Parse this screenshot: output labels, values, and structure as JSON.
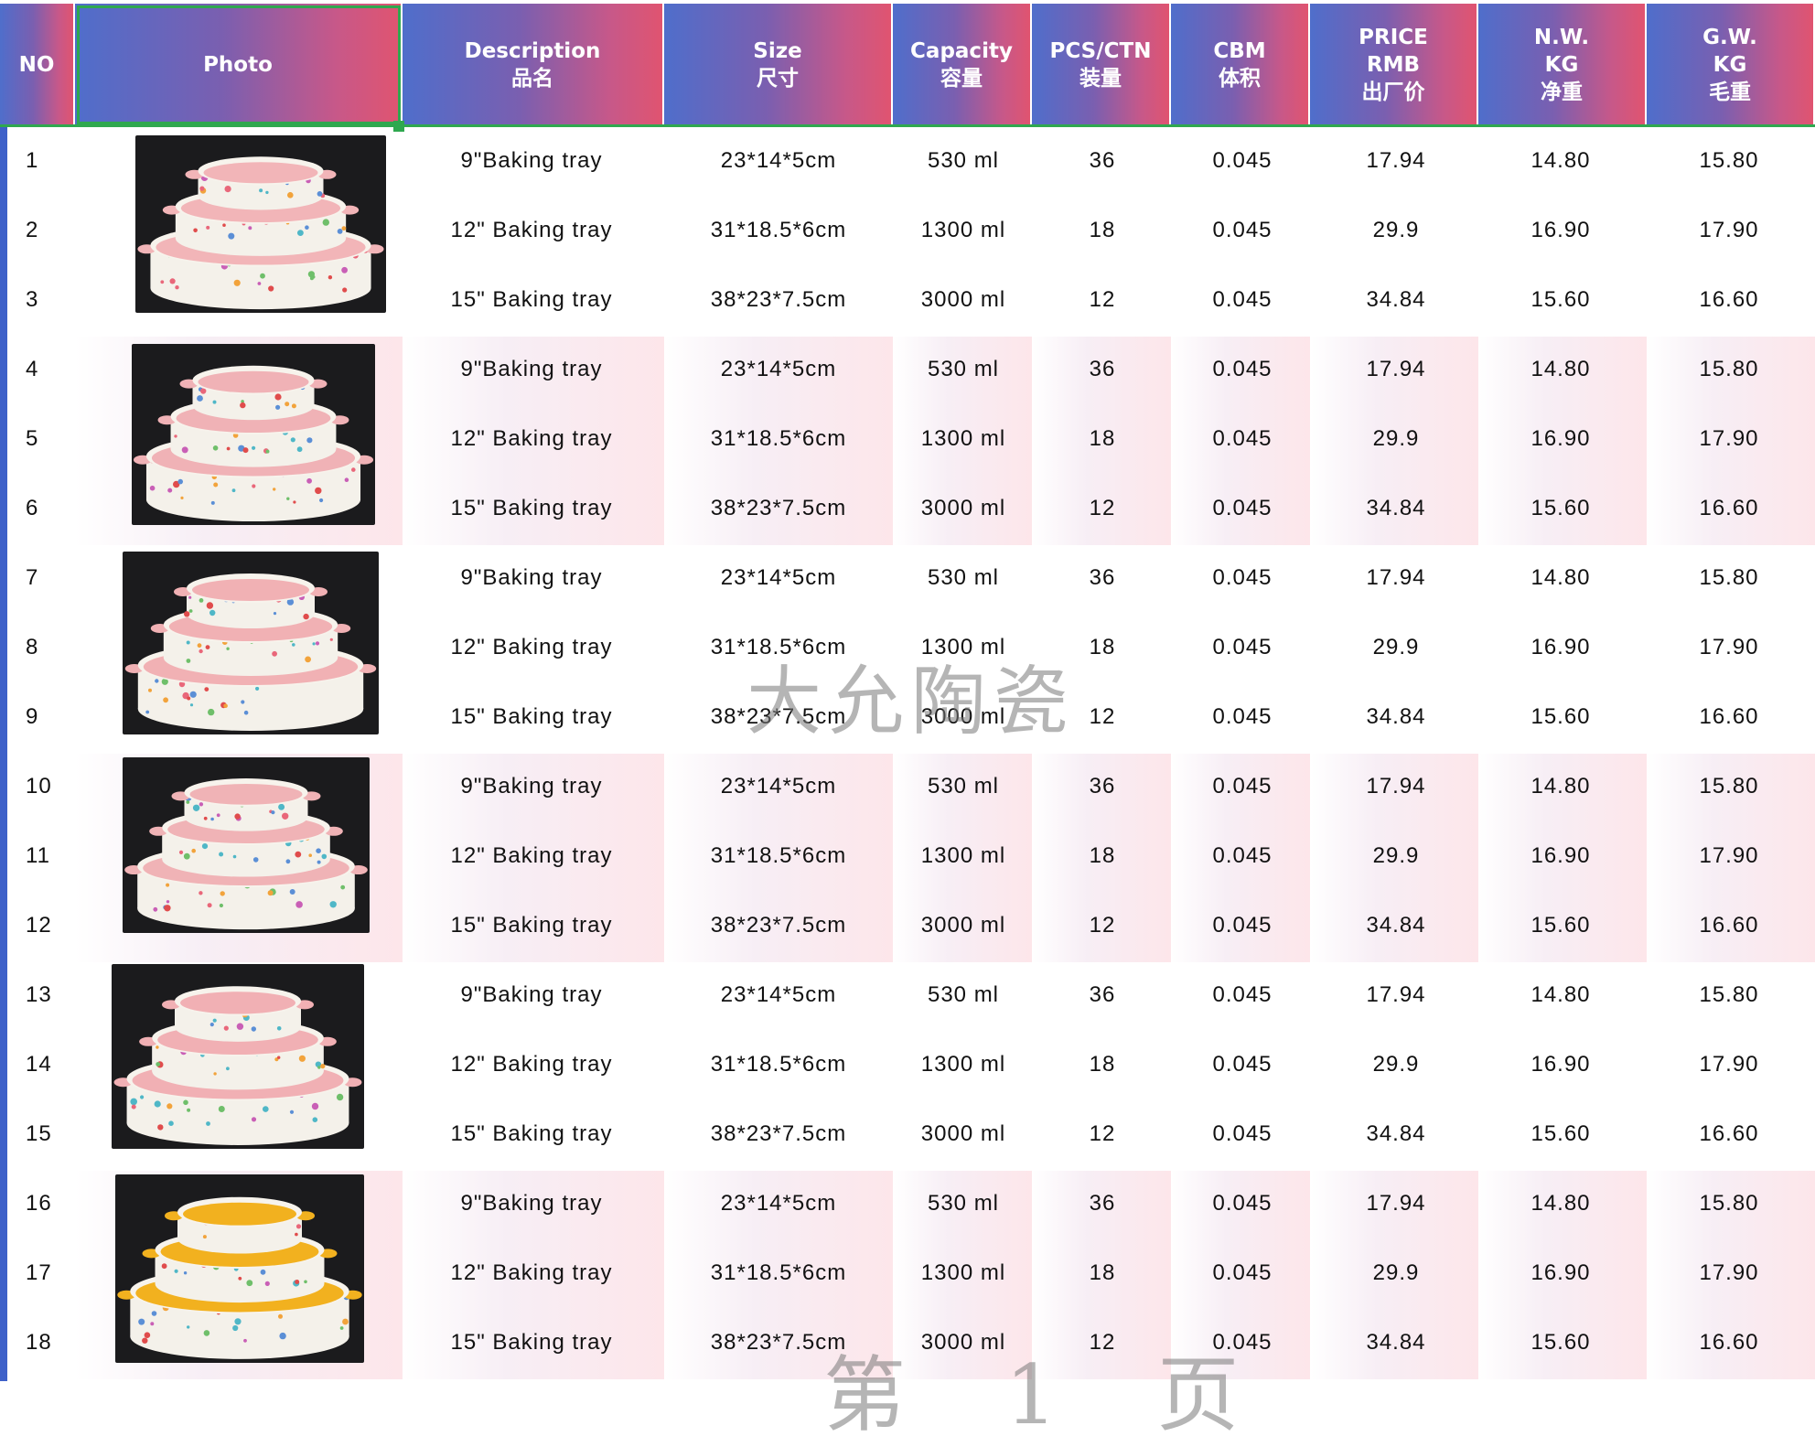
{
  "header": {
    "no": "NO",
    "photo": "Photo",
    "description": [
      "Description",
      "品名"
    ],
    "size": [
      "Size",
      "尺寸"
    ],
    "capacity": [
      "Capacity",
      "容量"
    ],
    "pcs": [
      "PCS/CTN",
      "装量"
    ],
    "cbm": [
      "CBM",
      "体积"
    ],
    "price": [
      "PRICE",
      "RMB",
      "出厂价"
    ],
    "nw": [
      "N.W.",
      "KG",
      "净重"
    ],
    "gw": [
      "G.W.",
      "KG",
      "毛重"
    ]
  },
  "rows": [
    {
      "no": "1",
      "desc": "9\"Baking tray",
      "size": "23*14*5cm",
      "cap": "530 ml",
      "pcs": "36",
      "cbm": "0.045",
      "price": "17.94",
      "nw": "14.80",
      "gw": "15.80"
    },
    {
      "no": "2",
      "desc": "12\" Baking tray",
      "size": "31*18.5*6cm",
      "cap": "1300 ml",
      "pcs": "18",
      "cbm": "0.045",
      "price": "29.9",
      "nw": "16.90",
      "gw": "17.90"
    },
    {
      "no": "3",
      "desc": "15\" Baking tray",
      "size": "38*23*7.5cm",
      "cap": "3000 ml",
      "pcs": "12",
      "cbm": "0.045",
      "price": "34.84",
      "nw": "15.60",
      "gw": "16.60"
    },
    {
      "no": "4",
      "desc": "9\"Baking tray",
      "size": "23*14*5cm",
      "cap": "530 ml",
      "pcs": "36",
      "cbm": "0.045",
      "price": "17.94",
      "nw": "14.80",
      "gw": "15.80"
    },
    {
      "no": "5",
      "desc": "12\" Baking tray",
      "size": "31*18.5*6cm",
      "cap": "1300 ml",
      "pcs": "18",
      "cbm": "0.045",
      "price": "29.9",
      "nw": "16.90",
      "gw": "17.90"
    },
    {
      "no": "6",
      "desc": "15\" Baking tray",
      "size": "38*23*7.5cm",
      "cap": "3000 ml",
      "pcs": "12",
      "cbm": "0.045",
      "price": "34.84",
      "nw": "15.60",
      "gw": "16.60"
    },
    {
      "no": "7",
      "desc": "9\"Baking tray",
      "size": "23*14*5cm",
      "cap": "530 ml",
      "pcs": "36",
      "cbm": "0.045",
      "price": "17.94",
      "nw": "14.80",
      "gw": "15.80"
    },
    {
      "no": "8",
      "desc": "12\" Baking tray",
      "size": "31*18.5*6cm",
      "cap": "1300 ml",
      "pcs": "18",
      "cbm": "0.045",
      "price": "29.9",
      "nw": "16.90",
      "gw": "17.90"
    },
    {
      "no": "9",
      "desc": "15\" Baking tray",
      "size": "38*23*7.5cm",
      "cap": "3000 ml",
      "pcs": "12",
      "cbm": "0.045",
      "price": "34.84",
      "nw": "15.60",
      "gw": "16.60"
    },
    {
      "no": "10",
      "desc": "9\"Baking tray",
      "size": "23*14*5cm",
      "cap": "530 ml",
      "pcs": "36",
      "cbm": "0.045",
      "price": "17.94",
      "nw": "14.80",
      "gw": "15.80"
    },
    {
      "no": "11",
      "desc": "12\" Baking tray",
      "size": "31*18.5*6cm",
      "cap": "1300 ml",
      "pcs": "18",
      "cbm": "0.045",
      "price": "29.9",
      "nw": "16.90",
      "gw": "17.90"
    },
    {
      "no": "12",
      "desc": "15\" Baking tray",
      "size": "38*23*7.5cm",
      "cap": "3000 ml",
      "pcs": "12",
      "cbm": "0.045",
      "price": "34.84",
      "nw": "15.60",
      "gw": "16.60"
    },
    {
      "no": "13",
      "desc": "9\"Baking tray",
      "size": "23*14*5cm",
      "cap": "530 ml",
      "pcs": "36",
      "cbm": "0.045",
      "price": "17.94",
      "nw": "14.80",
      "gw": "15.80"
    },
    {
      "no": "14",
      "desc": "12\" Baking tray",
      "size": "31*18.5*6cm",
      "cap": "1300 ml",
      "pcs": "18",
      "cbm": "0.045",
      "price": "29.9",
      "nw": "16.90",
      "gw": "17.90"
    },
    {
      "no": "15",
      "desc": "15\" Baking tray",
      "size": "38*23*7.5cm",
      "cap": "3000 ml",
      "pcs": "12",
      "cbm": "0.045",
      "price": "34.84",
      "nw": "15.60",
      "gw": "16.60"
    },
    {
      "no": "16",
      "desc": "9\"Baking tray",
      "size": "23*14*5cm",
      "cap": "530 ml",
      "pcs": "36",
      "cbm": "0.045",
      "price": "17.94",
      "nw": "14.80",
      "gw": "15.80"
    },
    {
      "no": "17",
      "desc": "12\" Baking tray",
      "size": "31*18.5*6cm",
      "cap": "1300 ml",
      "pcs": "18",
      "cbm": "0.045",
      "price": "29.9",
      "nw": "16.90",
      "gw": "17.90"
    },
    {
      "no": "18",
      "desc": "15\" Baking tray",
      "size": "38*23*7.5cm",
      "cap": "3000 ml",
      "pcs": "12",
      "cbm": "0.045",
      "price": "34.84",
      "nw": "15.60",
      "gw": "16.60"
    }
  ],
  "photos": [
    {
      "glaze": "#f2b5b8",
      "pattern": "dense-floral"
    },
    {
      "glaze": "#f0b2b6",
      "pattern": "sparse-floral"
    },
    {
      "glaze": "#f1b1b4",
      "pattern": "dots"
    },
    {
      "glaze": "#f0b3b6",
      "pattern": "small-floral"
    },
    {
      "glaze": "#f1b0b4",
      "pattern": "rose-floral"
    },
    {
      "glaze": "#f2b11f",
      "pattern": "rose-floral"
    }
  ],
  "watermark": {
    "text1": "大允陶瓷",
    "text2": "第 1 页"
  },
  "colors": {
    "header_left": "#4f6ecb",
    "header_right": "#e05470",
    "selection": "#2fa84f",
    "row_tint": "#fde6ea"
  }
}
